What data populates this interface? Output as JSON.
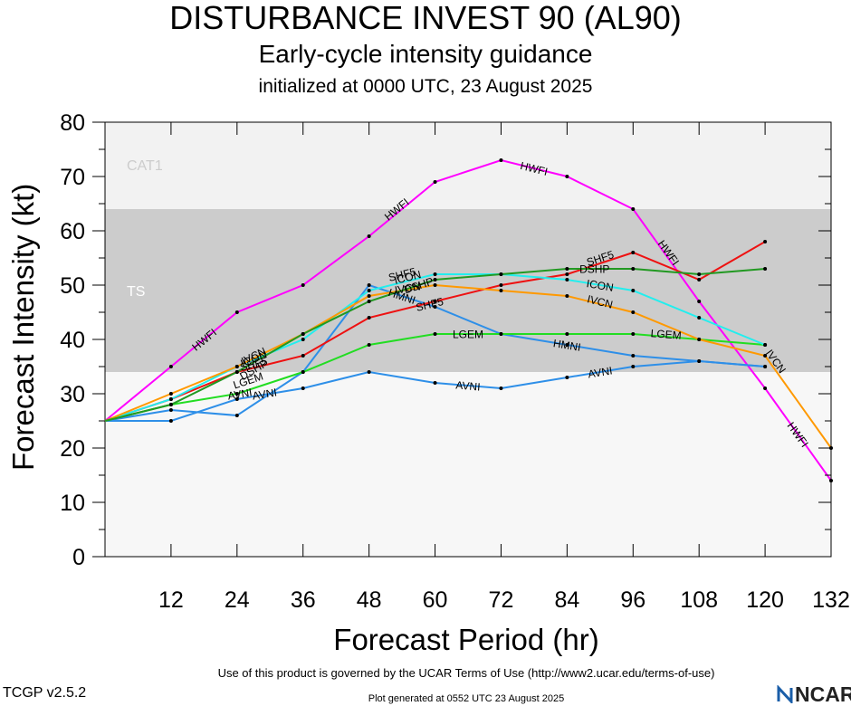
{
  "header": {
    "title": "DISTURBANCE INVEST 90 (AL90)",
    "subtitle": "Early-cycle intensity guidance",
    "initialized": "initialized at 0000 UTC, 23 August 2025"
  },
  "footer": {
    "terms": "Use of this product is governed by the UCAR Terms of Use (http://www2.ucar.edu/terms-of-use)",
    "version": "TCGP v2.5.2",
    "generated": "Plot generated at 0552 UTC   23 August 2025",
    "logo_text": "NCAR"
  },
  "chart_data": {
    "type": "line",
    "xlabel": "Forecast Period (hr)",
    "ylabel": "Forecast Intensity (kt)",
    "xlim": [
      0,
      132
    ],
    "ylim": [
      0,
      80
    ],
    "xticks": [
      12,
      24,
      36,
      48,
      60,
      72,
      84,
      96,
      108,
      120,
      132
    ],
    "yticks": [
      0,
      10,
      20,
      30,
      40,
      50,
      60,
      70,
      80
    ],
    "bands": [
      {
        "label": "TS",
        "from": 34,
        "to": 64,
        "color": "#cccccc",
        "label_color": "#ffffff"
      },
      {
        "label": "CAT1",
        "from": 64,
        "to": 80,
        "color": "#f2f2f2",
        "label_color": "#cccccc"
      }
    ],
    "background_below": "#f7f7f7",
    "series": [
      {
        "name": "HWFI",
        "color": "#ff00ff",
        "x": [
          0,
          12,
          24,
          36,
          48,
          60,
          72,
          84,
          96,
          108,
          120,
          132
        ],
        "y": [
          25,
          35,
          45,
          50,
          59,
          69,
          73,
          70,
          64,
          47,
          31,
          14
        ]
      },
      {
        "name": "AVNI",
        "color": "#2e8fe8",
        "x": [
          0,
          12,
          24,
          36,
          48,
          60,
          72,
          84,
          96,
          108,
          120
        ],
        "y": [
          25,
          25,
          29,
          31,
          34,
          32,
          31,
          33,
          35,
          36,
          35
        ]
      },
      {
        "name": "HMNI",
        "color": "#2e8fe8",
        "x": [
          0,
          12,
          24,
          36,
          48,
          60,
          72,
          84,
          96,
          108,
          120
        ],
        "y": [
          25,
          27,
          26,
          34,
          50,
          46,
          41,
          39,
          37,
          36,
          35
        ]
      },
      {
        "name": "LGEM",
        "color": "#22dd22",
        "x": [
          0,
          12,
          24,
          36,
          48,
          60,
          72,
          84,
          96,
          108,
          120
        ],
        "y": [
          25,
          28,
          30,
          34,
          39,
          41,
          41,
          41,
          41,
          40,
          39
        ]
      },
      {
        "name": "SHF5",
        "color": "#ee1111",
        "x": [
          0,
          12,
          24,
          36,
          48,
          60,
          72,
          84,
          96,
          108,
          120
        ],
        "y": [
          25,
          29,
          34,
          37,
          44,
          47,
          50,
          52,
          56,
          51,
          58
        ]
      },
      {
        "name": "ICON",
        "color": "#22eeee",
        "x": [
          0,
          12,
          24,
          36,
          48,
          60,
          72,
          84,
          96,
          108,
          120
        ],
        "y": [
          25,
          29,
          35,
          40,
          49,
          52,
          52,
          51,
          49,
          44,
          39
        ]
      },
      {
        "name": "IVCN",
        "color": "#ff9900",
        "x": [
          0,
          12,
          24,
          36,
          48,
          60,
          72,
          84,
          96,
          108,
          120,
          132
        ],
        "y": [
          25,
          30,
          35,
          41,
          48,
          50,
          49,
          48,
          45,
          40,
          37,
          20
        ]
      },
      {
        "name": "DSHP",
        "color": "#229922",
        "x": [
          0,
          12,
          24,
          36,
          48,
          60,
          72,
          84,
          96,
          108,
          120
        ],
        "y": [
          25,
          28,
          34,
          41,
          47,
          51,
          52,
          53,
          53,
          52,
          53
        ]
      }
    ],
    "point_labels": [
      {
        "series": "HWFI",
        "text": "HWFI",
        "x": 18,
        "y": 40
      },
      {
        "series": "HWFI",
        "text": "HWFI",
        "x": 53,
        "y": 64
      },
      {
        "series": "HWFI",
        "text": "HWFI",
        "x": 78,
        "y": 71.5
      },
      {
        "series": "HWFI",
        "text": "HWFI",
        "x": 102.5,
        "y": 56
      },
      {
        "series": "HWFI",
        "text": "HWFI",
        "x": 126,
        "y": 22.5
      },
      {
        "series": "AVNI",
        "text": "AVNI",
        "x": 29,
        "y": 30
      },
      {
        "series": "AVNI",
        "text": "AVNI",
        "x": 66,
        "y": 31.5
      },
      {
        "series": "AVNI",
        "text": "AVNI",
        "x": 90,
        "y": 34
      },
      {
        "series": "AVNI",
        "text": "AVNI",
        "x": 24.5,
        "y": 30
      },
      {
        "series": "HMNI",
        "text": "HMNI",
        "x": 54,
        "y": 48
      },
      {
        "series": "HMNI",
        "text": "HMNI",
        "x": 84,
        "y": 39
      },
      {
        "series": "LGEM",
        "text": "LGEM",
        "x": 26,
        "y": 32.5
      },
      {
        "series": "LGEM",
        "text": "LGEM",
        "x": 66,
        "y": 41
      },
      {
        "series": "LGEM",
        "text": "LGEM",
        "x": 102,
        "y": 41
      },
      {
        "series": "SHF5",
        "text": "SHF5",
        "x": 27,
        "y": 35.5
      },
      {
        "series": "SHF5",
        "text": "SHF5",
        "x": 59,
        "y": 46.5
      },
      {
        "series": "SHF5",
        "text": "SHF5",
        "x": 90,
        "y": 55
      },
      {
        "series": "ICON",
        "text": "ICON",
        "x": 27,
        "y": 36.5
      },
      {
        "series": "ICON",
        "text": "ICON",
        "x": 55,
        "y": 51.5
      },
      {
        "series": "ICON",
        "text": "ICON",
        "x": 90,
        "y": 50
      },
      {
        "series": "IVCN",
        "text": "IVCN",
        "x": 27,
        "y": 37
      },
      {
        "series": "IVCN",
        "text": "IVCN",
        "x": 90,
        "y": 47
      },
      {
        "series": "IVCN",
        "text": "IVCN",
        "x": 122,
        "y": 36
      },
      {
        "series": "DSHP",
        "text": "DSHP",
        "x": 57,
        "y": 50
      },
      {
        "series": "DSHP",
        "text": "DSHP",
        "x": 89,
        "y": 53
      },
      {
        "series": "IVCN",
        "text": "IVCN",
        "x": 55,
        "y": 49.5
      },
      {
        "series": "DSHP",
        "text": "DSHP",
        "x": 27,
        "y": 34.5
      },
      {
        "series": "SHF5",
        "text": "SHF5",
        "x": 54,
        "y": 52
      }
    ]
  }
}
